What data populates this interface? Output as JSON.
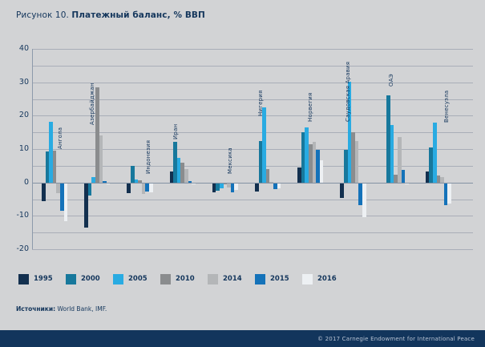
{
  "title": {
    "prefix": "Рисунок 10. ",
    "bold": "Платежный баланс, % ВВП"
  },
  "y_axis": {
    "tick_labels": [
      "40",
      "30",
      "20",
      "10",
      "0",
      "-10",
      "-20"
    ]
  },
  "source": {
    "label": "Источники:",
    "text": " World Bank, IMF."
  },
  "footer": {
    "copyright": "© 2017 Carnegie Endowment for International Peace"
  },
  "colors": {
    "background": "#d2d3d5",
    "text_navy": "#14365c",
    "gridline": "#a9aeb8",
    "zero_line": "#8392a4",
    "footer_bar": "#12355c",
    "footer_text": "#b7c2d2"
  },
  "chart_data": {
    "type": "bar",
    "title": "Платежный баланс, % ВВП",
    "ylabel": "% ВВП",
    "ylim": [
      -20,
      40
    ],
    "ytick_step": 10,
    "grid_step": 5,
    "grid": true,
    "legend_position": "bottom",
    "categories": [
      "Ангола",
      "Азербайджан",
      "Индонезия",
      "Иран",
      "Мексика",
      "Нигерия",
      "Норвегия",
      "Саудовская Аравия",
      "ОАЭ",
      "Венесуэла"
    ],
    "series": [
      {
        "name": "1995",
        "color": "#13304f",
        "values": [
          -5.4,
          -13.3,
          -3.0,
          3.2,
          -2.8,
          -2.4,
          4.5,
          -4.5,
          0,
          3.2
        ]
      },
      {
        "name": "2000",
        "color": "#17789c",
        "values": [
          9.2,
          -3.7,
          5.0,
          12.2,
          -2.2,
          12.4,
          15.0,
          9.8,
          26.2,
          10.4
        ]
      },
      {
        "name": "2005",
        "color": "#29abe2",
        "values": [
          18.2,
          1.6,
          0.8,
          7.3,
          -1.6,
          22.4,
          16.6,
          30.2,
          17.3,
          18.0
        ]
      },
      {
        "name": "2010",
        "color": "#8a8c8e",
        "values": [
          9.5,
          28.4,
          0.7,
          6.0,
          -0.3,
          4.0,
          11.4,
          15.0,
          2.4,
          2.0
        ]
      },
      {
        "name": "2014",
        "color": "#b4b6b8",
        "values": [
          -3.0,
          14.0,
          -3.2,
          4.0,
          -1.2,
          0.2,
          12.2,
          12.4,
          13.6,
          1.6
        ]
      },
      {
        "name": "2015",
        "color": "#1472b9",
        "values": [
          -8.2,
          0.5,
          -2.4,
          0.3,
          -2.8,
          -1.8,
          9.8,
          -6.6,
          3.8,
          -6.6
        ]
      },
      {
        "name": "2016",
        "color": "#edf0f3",
        "values": [
          -11.3,
          -0.4,
          -2.8,
          -0.4,
          -2.0,
          -1.6,
          6.6,
          -10.2,
          -0.3,
          -6.2
        ]
      }
    ]
  }
}
